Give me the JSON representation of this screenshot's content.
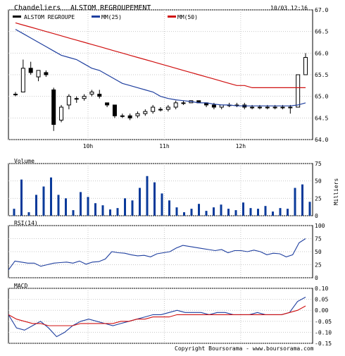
{
  "header": {
    "chart_kind": "Chandeliers",
    "instrument": "ALSTOM REGROUPEMENT",
    "datetime": "10/03 12:16",
    "legend": [
      {
        "label": "ALSTOM REGROUPE",
        "color": "#000000"
      },
      {
        "label": "MM(25)",
        "color": "#1f3f9f"
      },
      {
        "label": "MM(50)",
        "color": "#d01010"
      }
    ]
  },
  "panels": {
    "volume_title": "Volume",
    "volume_unit": "Milliers",
    "rsi_title": "RSI(14)",
    "macd_title": "MACD"
  },
  "footer": "Copyright Boursorama - www.boursorama.com",
  "colors": {
    "candle_up": "#ffffff",
    "candle_down": "#000000",
    "wick": "#000000",
    "mm25": "#1f3f9f",
    "mm50": "#d01010",
    "volume": "#0a3a9a",
    "rsi": "#1f3f9f",
    "macd": "#1f3f9f",
    "signal": "#d01010"
  },
  "chart_data": [
    {
      "type": "candlestick",
      "title": "Chandeliers ALSTOM REGROUPEMENT",
      "x_ticks": [
        {
          "label": "10h",
          "index": 10
        },
        {
          "label": "11h",
          "index": 20
        },
        {
          "label": "12h",
          "index": 30
        }
      ],
      "ylim": [
        64.0,
        67.0
      ],
      "y_ticks": [
        "67.0",
        "66.5",
        "66.0",
        "65.5",
        "65.0",
        "64.5",
        "64.0"
      ],
      "grid": true,
      "candles": [
        {
          "o": 65.05,
          "h": 65.1,
          "l": 65.0,
          "c": 65.05
        },
        {
          "o": 65.1,
          "h": 65.85,
          "l": 65.1,
          "c": 65.65
        },
        {
          "o": 65.65,
          "h": 65.8,
          "l": 65.5,
          "c": 65.55
        },
        {
          "o": 65.45,
          "h": 65.6,
          "l": 65.35,
          "c": 65.6
        },
        {
          "o": 65.55,
          "h": 65.6,
          "l": 65.45,
          "c": 65.5
        },
        {
          "o": 65.15,
          "h": 65.2,
          "l": 64.2,
          "c": 64.35
        },
        {
          "o": 64.45,
          "h": 64.8,
          "l": 64.4,
          "c": 64.75
        },
        {
          "o": 64.8,
          "h": 65.05,
          "l": 64.7,
          "c": 65.0
        },
        {
          "o": 64.95,
          "h": 65.0,
          "l": 64.85,
          "c": 64.95
        },
        {
          "o": 64.95,
          "h": 65.05,
          "l": 64.9,
          "c": 65.0
        },
        {
          "o": 65.05,
          "h": 65.15,
          "l": 65.0,
          "c": 65.1
        },
        {
          "o": 65.05,
          "h": 65.15,
          "l": 64.95,
          "c": 65.0
        },
        {
          "o": 64.85,
          "h": 64.85,
          "l": 64.75,
          "c": 64.8
        },
        {
          "o": 64.8,
          "h": 64.8,
          "l": 64.5,
          "c": 64.55
        },
        {
          "o": 64.55,
          "h": 64.6,
          "l": 64.5,
          "c": 64.55
        },
        {
          "o": 64.55,
          "h": 64.6,
          "l": 64.45,
          "c": 64.5
        },
        {
          "o": 64.55,
          "h": 64.65,
          "l": 64.5,
          "c": 64.6
        },
        {
          "o": 64.6,
          "h": 64.7,
          "l": 64.55,
          "c": 64.65
        },
        {
          "o": 64.65,
          "h": 64.8,
          "l": 64.6,
          "c": 64.75
        },
        {
          "o": 64.7,
          "h": 64.75,
          "l": 64.65,
          "c": 64.7
        },
        {
          "o": 64.7,
          "h": 64.8,
          "l": 64.65,
          "c": 64.75
        },
        {
          "o": 64.75,
          "h": 64.9,
          "l": 64.7,
          "c": 64.85
        },
        {
          "o": 64.85,
          "h": 64.9,
          "l": 64.8,
          "c": 64.85
        },
        {
          "o": 64.85,
          "h": 64.9,
          "l": 64.85,
          "c": 64.9
        },
        {
          "o": 64.9,
          "h": 64.9,
          "l": 64.85,
          "c": 64.85
        },
        {
          "o": 64.85,
          "h": 64.85,
          "l": 64.75,
          "c": 64.8
        },
        {
          "o": 64.8,
          "h": 64.85,
          "l": 64.7,
          "c": 64.75
        },
        {
          "o": 64.75,
          "h": 64.8,
          "l": 64.7,
          "c": 64.8
        },
        {
          "o": 64.8,
          "h": 64.85,
          "l": 64.75,
          "c": 64.8
        },
        {
          "o": 64.8,
          "h": 64.85,
          "l": 64.75,
          "c": 64.8
        },
        {
          "o": 64.8,
          "h": 64.85,
          "l": 64.7,
          "c": 64.75
        },
        {
          "o": 64.75,
          "h": 64.8,
          "l": 64.7,
          "c": 64.75
        },
        {
          "o": 64.75,
          "h": 64.8,
          "l": 64.7,
          "c": 64.75
        },
        {
          "o": 64.75,
          "h": 64.8,
          "l": 64.7,
          "c": 64.75
        },
        {
          "o": 64.75,
          "h": 64.8,
          "l": 64.7,
          "c": 64.75
        },
        {
          "o": 64.75,
          "h": 64.8,
          "l": 64.7,
          "c": 64.75
        },
        {
          "o": 64.75,
          "h": 64.8,
          "l": 64.6,
          "c": 64.75
        },
        {
          "o": 64.75,
          "h": 65.5,
          "l": 64.75,
          "c": 65.5
        },
        {
          "o": 65.5,
          "h": 66.0,
          "l": 65.5,
          "c": 65.9
        }
      ],
      "series": [
        {
          "name": "MM(25)",
          "values": [
            66.55,
            66.45,
            66.35,
            66.25,
            66.15,
            66.05,
            65.95,
            65.9,
            65.85,
            65.75,
            65.65,
            65.6,
            65.5,
            65.4,
            65.3,
            65.25,
            65.2,
            65.15,
            65.1,
            65.0,
            64.95,
            64.92,
            64.9,
            64.88,
            64.85,
            64.85,
            64.82,
            64.8,
            64.8,
            64.78,
            64.78,
            64.78,
            64.78,
            64.78,
            64.78,
            64.78,
            64.78,
            64.8,
            64.85
          ]
        },
        {
          "name": "MM(50)",
          "values": [
            66.7,
            66.65,
            66.6,
            66.55,
            66.5,
            66.45,
            66.4,
            66.35,
            66.3,
            66.25,
            66.2,
            66.15,
            66.1,
            66.05,
            66.0,
            65.95,
            65.9,
            65.85,
            65.8,
            65.75,
            65.7,
            65.65,
            65.6,
            65.55,
            65.5,
            65.45,
            65.4,
            65.35,
            65.3,
            65.25,
            65.25,
            65.2,
            65.2,
            65.2,
            65.2,
            65.2,
            65.2,
            65.2,
            65.2
          ]
        }
      ]
    },
    {
      "type": "bar",
      "title": "Volume",
      "ylabel": "Milliers",
      "ylim": [
        0,
        75
      ],
      "y_ticks": [
        "75",
        "50",
        "25",
        "0"
      ],
      "values": [
        10,
        52,
        5,
        30,
        42,
        55,
        30,
        25,
        8,
        34,
        27,
        18,
        15,
        9,
        11,
        25,
        22,
        40,
        57,
        48,
        32,
        22,
        12,
        5,
        10,
        17,
        7,
        12,
        16,
        10,
        8,
        19,
        11,
        10,
        14,
        6,
        11,
        10,
        40,
        45,
        20
      ]
    },
    {
      "type": "line",
      "title": "RSI(14)",
      "ylim": [
        0,
        100
      ],
      "y_ticks": [
        "100",
        "75",
        "50",
        "25",
        "0"
      ],
      "values": [
        15,
        32,
        30,
        28,
        28,
        22,
        25,
        28,
        29,
        30,
        28,
        32,
        26,
        30,
        31,
        36,
        50,
        48,
        47,
        44,
        42,
        43,
        40,
        46,
        48,
        50,
        57,
        62,
        60,
        58,
        56,
        54,
        52,
        54,
        48,
        52,
        52,
        50,
        53,
        50,
        44,
        47,
        46,
        40,
        44,
        67,
        75
      ]
    },
    {
      "type": "line",
      "title": "MACD",
      "ylim": [
        -0.15,
        0.1
      ],
      "y_ticks": [
        "0.10",
        "0.05",
        "0.00",
        "-0.05",
        "-0.10",
        "-0.15"
      ],
      "series": [
        {
          "name": "MACD",
          "values": [
            -0.02,
            -0.08,
            -0.09,
            -0.07,
            -0.05,
            -0.08,
            -0.12,
            -0.1,
            -0.07,
            -0.05,
            -0.04,
            -0.05,
            -0.06,
            -0.07,
            -0.06,
            -0.05,
            -0.04,
            -0.03,
            -0.02,
            -0.02,
            -0.01,
            0.0,
            -0.01,
            -0.01,
            -0.01,
            -0.02,
            -0.01,
            -0.01,
            -0.02,
            -0.02,
            -0.02,
            -0.01,
            -0.02,
            -0.02,
            -0.02,
            -0.01,
            0.04,
            0.06
          ]
        },
        {
          "name": "Signal",
          "values": [
            -0.02,
            -0.04,
            -0.05,
            -0.06,
            -0.06,
            -0.07,
            -0.07,
            -0.07,
            -0.07,
            -0.06,
            -0.06,
            -0.06,
            -0.06,
            -0.06,
            -0.05,
            -0.05,
            -0.04,
            -0.04,
            -0.03,
            -0.03,
            -0.03,
            -0.02,
            -0.02,
            -0.02,
            -0.02,
            -0.02,
            -0.02,
            -0.02,
            -0.02,
            -0.02,
            -0.02,
            -0.02,
            -0.02,
            -0.02,
            -0.02,
            -0.01,
            0.0,
            0.02
          ]
        }
      ]
    }
  ]
}
